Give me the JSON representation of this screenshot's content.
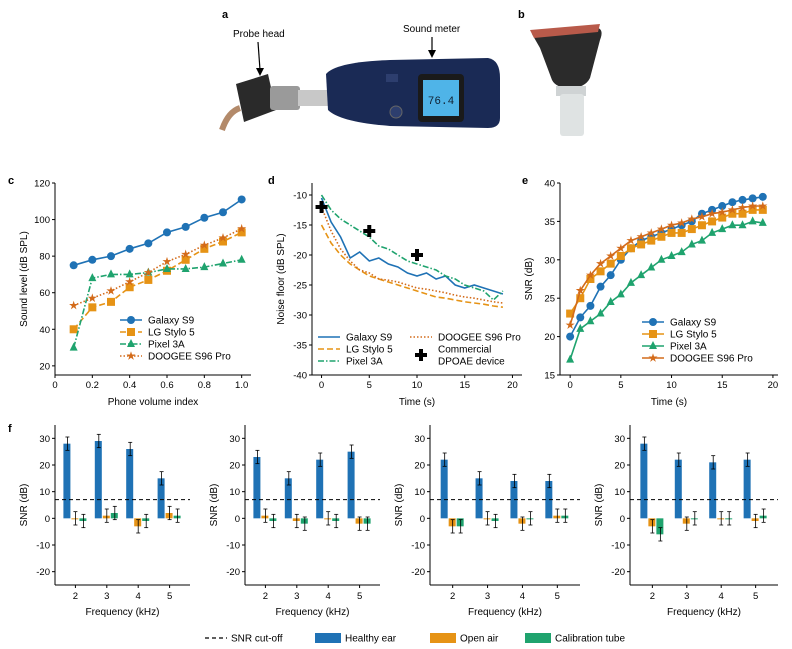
{
  "panel_labels": {
    "a": "a",
    "b": "b",
    "c": "c",
    "d": "d",
    "e": "e",
    "f": "f"
  },
  "photo_a": {
    "probe_label": "Probe head",
    "meter_label": "Sound meter",
    "display_reading": "76.4"
  },
  "colors": {
    "blue": "#1f72b5",
    "orange": "#e69315",
    "green": "#1fa36e",
    "darkorange": "#d36b1a",
    "black": "#000000"
  },
  "chart_data": [
    {
      "id": "c",
      "type": "line",
      "xlabel": "Phone volume index",
      "ylabel": "Sound level (dB SPL)",
      "xlim": [
        0,
        1.05
      ],
      "ylim": [
        15,
        120
      ],
      "xticks": [
        0,
        0.2,
        0.4,
        0.6,
        0.8,
        1.0
      ],
      "xtick_labels": [
        "0",
        "0.2",
        "0.4",
        "0.6",
        "0.8",
        "1.0"
      ],
      "yticks": [
        20,
        40,
        60,
        80,
        100,
        120
      ],
      "x": [
        0.1,
        0.2,
        0.3,
        0.4,
        0.5,
        0.6,
        0.7,
        0.8,
        0.9,
        1.0
      ],
      "series": [
        {
          "name": "Galaxy S9",
          "color": "#1f72b5",
          "marker": "circle",
          "dash": "",
          "values": [
            75,
            78,
            80,
            84,
            87,
            93,
            96,
            101,
            104,
            111
          ]
        },
        {
          "name": "LG Stylo 5",
          "color": "#e69315",
          "marker": "square",
          "dash": "6,3",
          "values": [
            40,
            52,
            55,
            63,
            67,
            72,
            78,
            84,
            88,
            93
          ]
        },
        {
          "name": "Pixel 3A",
          "color": "#1fa36e",
          "marker": "triangle",
          "dash": "6,2,1.5,2",
          "values": [
            30,
            68,
            70,
            70,
            71,
            73,
            73,
            74,
            76,
            78
          ]
        },
        {
          "name": "DOOGEE S96 Pro",
          "color": "#d36b1a",
          "marker": "star",
          "dash": "1.5,2",
          "values": [
            53,
            57,
            61,
            66,
            71,
            77,
            81,
            86,
            90,
            95
          ]
        }
      ],
      "legend": "bottom-right"
    },
    {
      "id": "d",
      "type": "line",
      "xlabel": "Time (s)",
      "ylabel": "Noise floor (dB SPL)",
      "xlim": [
        -1,
        21
      ],
      "ylim": [
        -40,
        -8
      ],
      "xticks": [
        0,
        5,
        10,
        15,
        20
      ],
      "xtick_labels": [
        "0",
        "5",
        "10",
        "15",
        "20"
      ],
      "yticks": [
        -40,
        -35,
        -30,
        -25,
        -20,
        -15,
        -10
      ],
      "x": [
        0,
        1,
        2,
        3,
        4,
        5,
        6,
        7,
        8,
        9,
        10,
        11,
        12,
        13,
        14,
        15,
        16,
        17,
        18,
        19
      ],
      "series": [
        {
          "name": "Galaxy S9",
          "color": "#1f72b5",
          "marker": "none",
          "dash": "",
          "values": [
            -10.5,
            -14.5,
            -17,
            -20.5,
            -19.5,
            -21,
            -20.5,
            -21.5,
            -22,
            -23,
            -23.5,
            -23,
            -24,
            -23.5,
            -25,
            -25.5,
            -25,
            -25.5,
            -26,
            -26.5
          ]
        },
        {
          "name": "LG Stylo 5",
          "color": "#e69315",
          "marker": "none",
          "dash": "6,3",
          "values": [
            -15,
            -18,
            -20,
            -21.5,
            -22.5,
            -23.5,
            -24,
            -24.5,
            -25,
            -25.5,
            -26,
            -26.5,
            -27,
            -27.2,
            -27.5,
            -27.8,
            -28,
            -28.2,
            -28.5,
            -28.7
          ]
        },
        {
          "name": "Pixel 3A",
          "color": "#1fa36e",
          "marker": "none",
          "dash": "6,2,1.5,2",
          "values": [
            -10,
            -12.5,
            -14,
            -15,
            -16,
            -17,
            -18.5,
            -19,
            -20,
            -21,
            -21.5,
            -22,
            -22.5,
            -23.5,
            -24,
            -25,
            -25.5,
            -26,
            -27.5,
            -26
          ]
        },
        {
          "name": "DOOGEE S96 Pro",
          "color": "#d36b1a",
          "marker": "none",
          "dash": "1.5,2",
          "values": [
            -12,
            -16,
            -19,
            -21,
            -22.5,
            -23,
            -24,
            -24.2,
            -24.5,
            -25,
            -25.5,
            -25.7,
            -26,
            -26.3,
            -26.7,
            -27,
            -27.2,
            -27.5,
            -27.8,
            -28
          ]
        }
      ],
      "commercial": {
        "name": "Commercial DPOAE device",
        "points": [
          {
            "x": 0,
            "y": -12
          },
          {
            "x": 5,
            "y": -16
          },
          {
            "x": 10,
            "y": -20
          }
        ]
      },
      "legend": "bottom"
    },
    {
      "id": "e",
      "type": "line",
      "xlabel": "Time (s)",
      "ylabel": "SNR (dB)",
      "xlim": [
        -1,
        20.5
      ],
      "ylim": [
        15,
        40
      ],
      "xticks": [
        0,
        5,
        10,
        15,
        20
      ],
      "xtick_labels": [
        "0",
        "5",
        "10",
        "15",
        "20"
      ],
      "yticks": [
        15,
        20,
        25,
        30,
        35,
        40
      ],
      "x": [
        0,
        1,
        2,
        3,
        4,
        5,
        6,
        7,
        8,
        9,
        10,
        11,
        12,
        13,
        14,
        15,
        16,
        17,
        18,
        19
      ],
      "series": [
        {
          "name": "Galaxy S9",
          "color": "#1f72b5",
          "marker": "circle",
          "dash": "",
          "values": [
            20,
            22.5,
            24,
            26.5,
            28,
            30,
            31.5,
            32.5,
            33,
            33.5,
            34,
            34.5,
            35,
            36,
            36.5,
            37,
            37.5,
            37.8,
            38,
            38.2
          ]
        },
        {
          "name": "LG Stylo 5",
          "color": "#e69315",
          "marker": "square",
          "dash": "",
          "values": [
            23,
            25,
            27.5,
            28.5,
            29.5,
            30.5,
            31.5,
            32,
            32.5,
            33,
            33.5,
            33.5,
            34,
            34.5,
            35,
            35.5,
            36,
            36,
            36.5,
            36.5
          ]
        },
        {
          "name": "Pixel 3A",
          "color": "#1fa36e",
          "marker": "triangle",
          "dash": "",
          "values": [
            17,
            21,
            22,
            23,
            24.5,
            25.5,
            27,
            28,
            29,
            30,
            30.5,
            31,
            32,
            32.5,
            33.5,
            34,
            34.5,
            34.5,
            35,
            34.8
          ]
        },
        {
          "name": "DOOGEE S96 Pro",
          "color": "#d36b1a",
          "marker": "star",
          "dash": "",
          "values": [
            21.5,
            26,
            28,
            29.5,
            30.5,
            31.5,
            32.5,
            33,
            33.5,
            34,
            34.5,
            34.8,
            35.3,
            35.6,
            36,
            36.2,
            36.5,
            36.8,
            37,
            37
          ]
        }
      ],
      "legend": "bottom-right"
    },
    {
      "id": "f",
      "type": "bar",
      "xlabel": "Frequency (kHz)",
      "ylabel": "SNR (dB)",
      "ylim": [
        -25,
        35
      ],
      "yticks": [
        -20,
        -10,
        0,
        10,
        20,
        30
      ],
      "categories": [
        "2",
        "3",
        "4",
        "5"
      ],
      "snr_cutoff": 7,
      "subplots": [
        {
          "series": [
            {
              "name": "Healthy ear",
              "color": "#1f72b5",
              "values": [
                28,
                29,
                26,
                15
              ]
            },
            {
              "name": "Open air",
              "color": "#e69315",
              "values": [
                0,
                1,
                -3,
                2
              ]
            },
            {
              "name": "Calibration tube",
              "color": "#1fa36e",
              "values": [
                -1,
                2,
                -1,
                1
              ]
            }
          ]
        },
        {
          "series": [
            {
              "name": "Healthy ear",
              "color": "#1f72b5",
              "values": [
                23,
                15,
                22,
                25
              ]
            },
            {
              "name": "Open air",
              "color": "#e69315",
              "values": [
                1,
                -1,
                0,
                -2
              ]
            },
            {
              "name": "Calibration tube",
              "color": "#1fa36e",
              "values": [
                -1,
                -2,
                -1,
                -2
              ]
            }
          ]
        },
        {
          "series": [
            {
              "name": "Healthy ear",
              "color": "#1f72b5",
              "values": [
                22,
                15,
                14,
                14
              ]
            },
            {
              "name": "Open air",
              "color": "#e69315",
              "values": [
                -3,
                0,
                -2,
                1
              ]
            },
            {
              "name": "Calibration tube",
              "color": "#1fa36e",
              "values": [
                -3,
                -1,
                0,
                1
              ]
            }
          ]
        },
        {
          "series": [
            {
              "name": "Healthy ear",
              "color": "#1f72b5",
              "values": [
                28,
                22,
                21,
                22
              ]
            },
            {
              "name": "Open air",
              "color": "#e69315",
              "values": [
                -3,
                -2,
                0,
                -1
              ]
            },
            {
              "name": "Calibration tube",
              "color": "#1fa36e",
              "values": [
                -6,
                0,
                0,
                1
              ]
            }
          ]
        }
      ],
      "legend": [
        {
          "name": "SNR cut-off",
          "kind": "dashed-line"
        },
        {
          "name": "Healthy ear",
          "kind": "swatch",
          "color": "#1f72b5"
        },
        {
          "name": "Open air",
          "kind": "swatch",
          "color": "#e69315"
        },
        {
          "name": "Calibration tube",
          "kind": "swatch",
          "color": "#1fa36e"
        }
      ]
    }
  ]
}
